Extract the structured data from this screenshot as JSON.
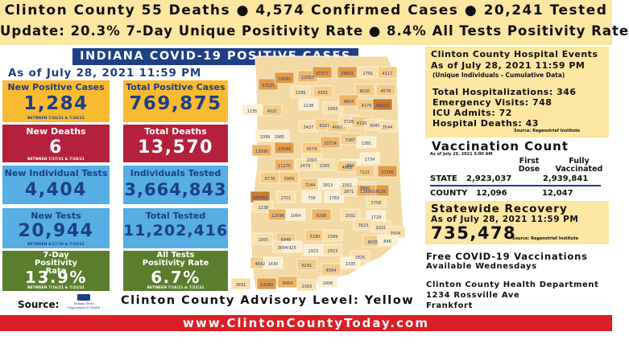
{
  "header": {
    "line1": "Clinton County  55 Deaths  ● 4,574 Confirmed Cases    ● 20,241 Tested",
    "line2": "Update: 20.3% 7-Day Unique Positivity Rate ● 8.4% All Tests Positivity Rate"
  },
  "banner": "INDIANA COVID-19 POSITIVE CASES",
  "as_of": "As of July 28, 2021 11:59 PM",
  "stats": [
    {
      "label": "New Positive Cases",
      "value": "1,284",
      "sub": "BETWEEN 7/26/21 & 7/28/21",
      "color": "yellow"
    },
    {
      "label": "Total Positive Cases",
      "value": "769,875",
      "sub": "",
      "color": "yellow"
    },
    {
      "label": "New Deaths",
      "value": "6",
      "sub": "BETWEEN 7/27/21 & 7/28/21",
      "color": "red"
    },
    {
      "label": "Total Deaths",
      "value": "13,570",
      "sub": "",
      "color": "red"
    },
    {
      "label": "New Individual Tests",
      "value": "4,404",
      "sub": "",
      "color": "blue"
    },
    {
      "label": "Individuals Tested",
      "value": "3,664,843",
      "sub": "",
      "color": "blue"
    },
    {
      "label": "New Tests",
      "value": "20,944",
      "sub": "BETWEEN 4/17/20 & 7/28/21",
      "color": "blue"
    },
    {
      "label": "Total Tested",
      "value": "11,202,416",
      "sub": "",
      "color": "blue"
    },
    {
      "label": "7-Day Positivity Rate",
      "value": "13.9%",
      "sub": "BETWEEN 7/16/21 & 7/22/21",
      "color": "green"
    },
    {
      "label": "All Tests Positivity Rate",
      "value": "6.7%",
      "sub": "BETWEEN 7/16/21 & 7/22/21",
      "color": "green"
    }
  ],
  "map_labels": [
    "37027",
    "19593",
    "12583",
    "37377",
    "29801",
    "2781",
    "4117",
    "2299",
    "6351",
    "6020",
    "4578",
    "1238",
    "2093",
    "9804",
    "4179",
    "43112",
    "4021",
    "1235",
    "3437",
    "6101",
    "4067",
    "3726",
    "4193",
    "3045",
    "3544",
    "1099",
    "1985",
    "23544",
    "4574",
    "10724",
    "7387",
    "1381",
    "2093",
    "880",
    "1734",
    "13590",
    "11170",
    "2479",
    "2365",
    "4603",
    "7221",
    "37395",
    "6778",
    "5969",
    "7244",
    "1813",
    "1561",
    "3860",
    "18125",
    "105762",
    "2701",
    "736",
    "1783",
    "2871",
    "12890",
    "2758",
    "2238",
    "12598",
    "1064",
    "8286",
    "2932",
    "1729",
    "2221",
    "2955",
    "6946",
    "5180",
    "2399",
    "3523",
    "6035",
    "3504",
    "3094",
    "925",
    "1923",
    "2553",
    "2825",
    "846",
    "4642",
    "1430",
    "6291",
    "4564",
    "1335",
    "2831",
    "23260",
    "8064",
    "2393",
    "1906"
  ],
  "advisory": "Clinton County Advisory Level: Yellow",
  "source_label": "Source:",
  "isdh_logo_text": "Indiana State Department of Health",
  "footer": "www.ClintonCountyToday.com",
  "hospital": {
    "title": "Clinton County Hospital Events",
    "as_of": "As of July 28, 2021 11:59 PM",
    "note": "(Unique Individuals - Cumulative Data)",
    "lines": [
      "Total Hospitalizations: 346",
      "Emergency Visits: 748",
      "ICU Admits: 72",
      "Hospital Deaths: 43"
    ],
    "source": "Source: Regenstrief Institute"
  },
  "vaccination": {
    "title": "Vaccination Count",
    "as_of": "As of July 29, 2021 5:00 AM",
    "col1": "First Dose",
    "col2": "Fully Vaccinated",
    "state_label": "STATE",
    "state_first": "2,923,037",
    "state_full": "2,939,841",
    "county_label": "COUNTY",
    "county_first": "12,096",
    "county_full": "12,047"
  },
  "recovery": {
    "title": "Statewide Recovery",
    "as_of": "As of July 28, 2021 11:59 PM",
    "value": "735,478",
    "source": "Source: Regenstrief Institute"
  },
  "free_vax": {
    "line1": "Free COVID-19 Vaccinations",
    "line2": "Available Wednesdays"
  },
  "health_dept": {
    "line1": "Clinton County Health Department",
    "line2": "1234 Rossville Ave",
    "line3": "Frankfort"
  },
  "colors": {
    "navy": "#1e3f86",
    "yellow": "#f9b930",
    "red": "#b5213c",
    "blue": "#56aee3",
    "green": "#5b7d2e",
    "header_bg": "#fbe6a2",
    "footer_red": "#dc1f26"
  }
}
